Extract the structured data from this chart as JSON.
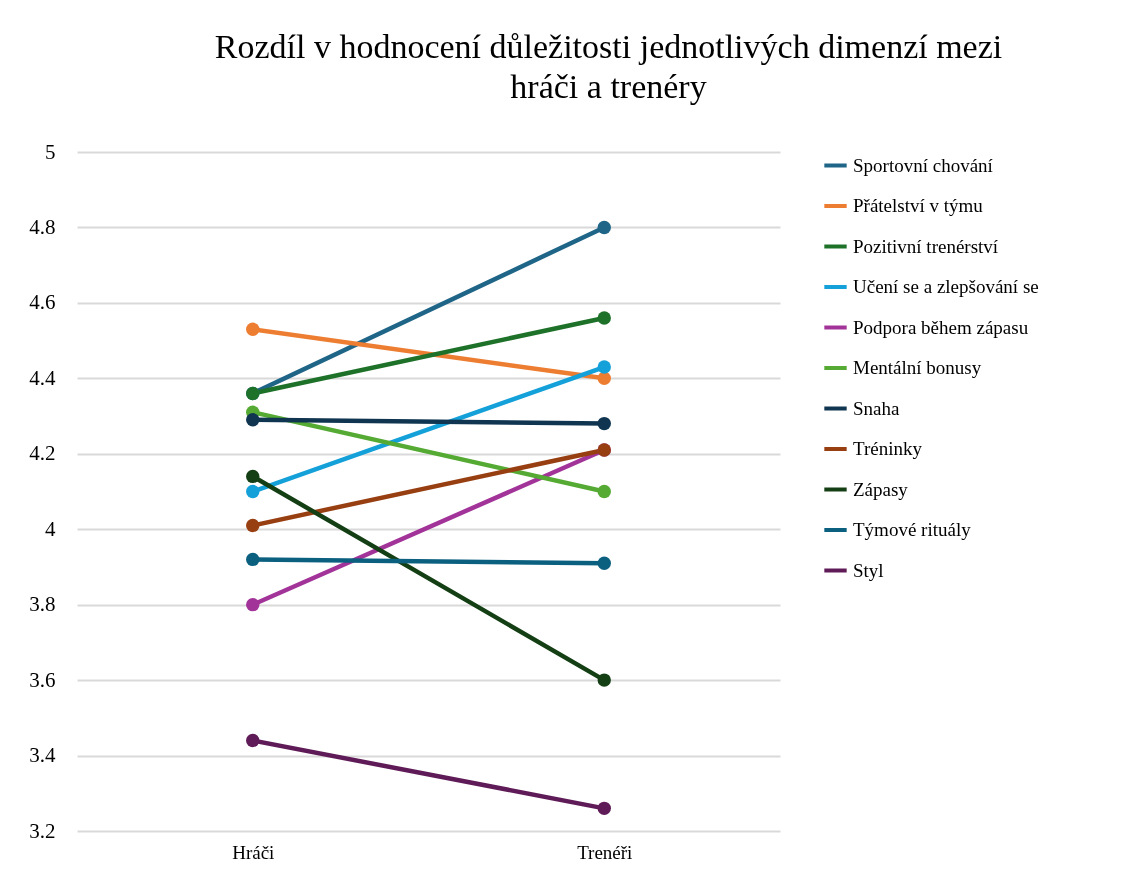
{
  "chart_data": {
    "type": "line",
    "title": "Rozdíl v hodnocení důležitosti jednotlivých dimenzí mezi hráči a trenéry",
    "categories": [
      "Hráči",
      "Trenéři"
    ],
    "series": [
      {
        "name": "Sportovní chování",
        "color": "#1f6587",
        "values": [
          4.36,
          4.8
        ]
      },
      {
        "name": "Přátelství v týmu",
        "color": "#ed7d31",
        "values": [
          4.53,
          4.4
        ]
      },
      {
        "name": "Pozitivní trenérství",
        "color": "#1e7129",
        "values": [
          4.36,
          4.56
        ]
      },
      {
        "name": "Učení se a zlepšování se",
        "color": "#14a0d8",
        "values": [
          4.1,
          4.43
        ]
      },
      {
        "name": "Podpora během zápasu",
        "color": "#a23399",
        "values": [
          3.8,
          4.21
        ]
      },
      {
        "name": "Mentální bonusy",
        "color": "#55aa33",
        "values": [
          4.31,
          4.1
        ]
      },
      {
        "name": "Snaha",
        "color": "#0f3550",
        "values": [
          4.29,
          4.28
        ]
      },
      {
        "name": "Tréninky",
        "color": "#983f12",
        "values": [
          4.01,
          4.21
        ]
      },
      {
        "name": "Zápasy",
        "color": "#143f14",
        "values": [
          4.14,
          3.6
        ]
      },
      {
        "name": "Týmové rituály",
        "color": "#0b6080",
        "values": [
          3.92,
          3.91
        ]
      },
      {
        "name": "Styl",
        "color": "#5f1b57",
        "values": [
          3.44,
          3.26
        ]
      }
    ],
    "ylim": [
      3.2,
      5
    ],
    "yticks": [
      3.2,
      3.4,
      3.6,
      3.8,
      4,
      4.2,
      4.4,
      4.6,
      4.8,
      5
    ],
    "grid": "y",
    "legend": "right",
    "marker": "circle",
    "line_style": "solid"
  }
}
